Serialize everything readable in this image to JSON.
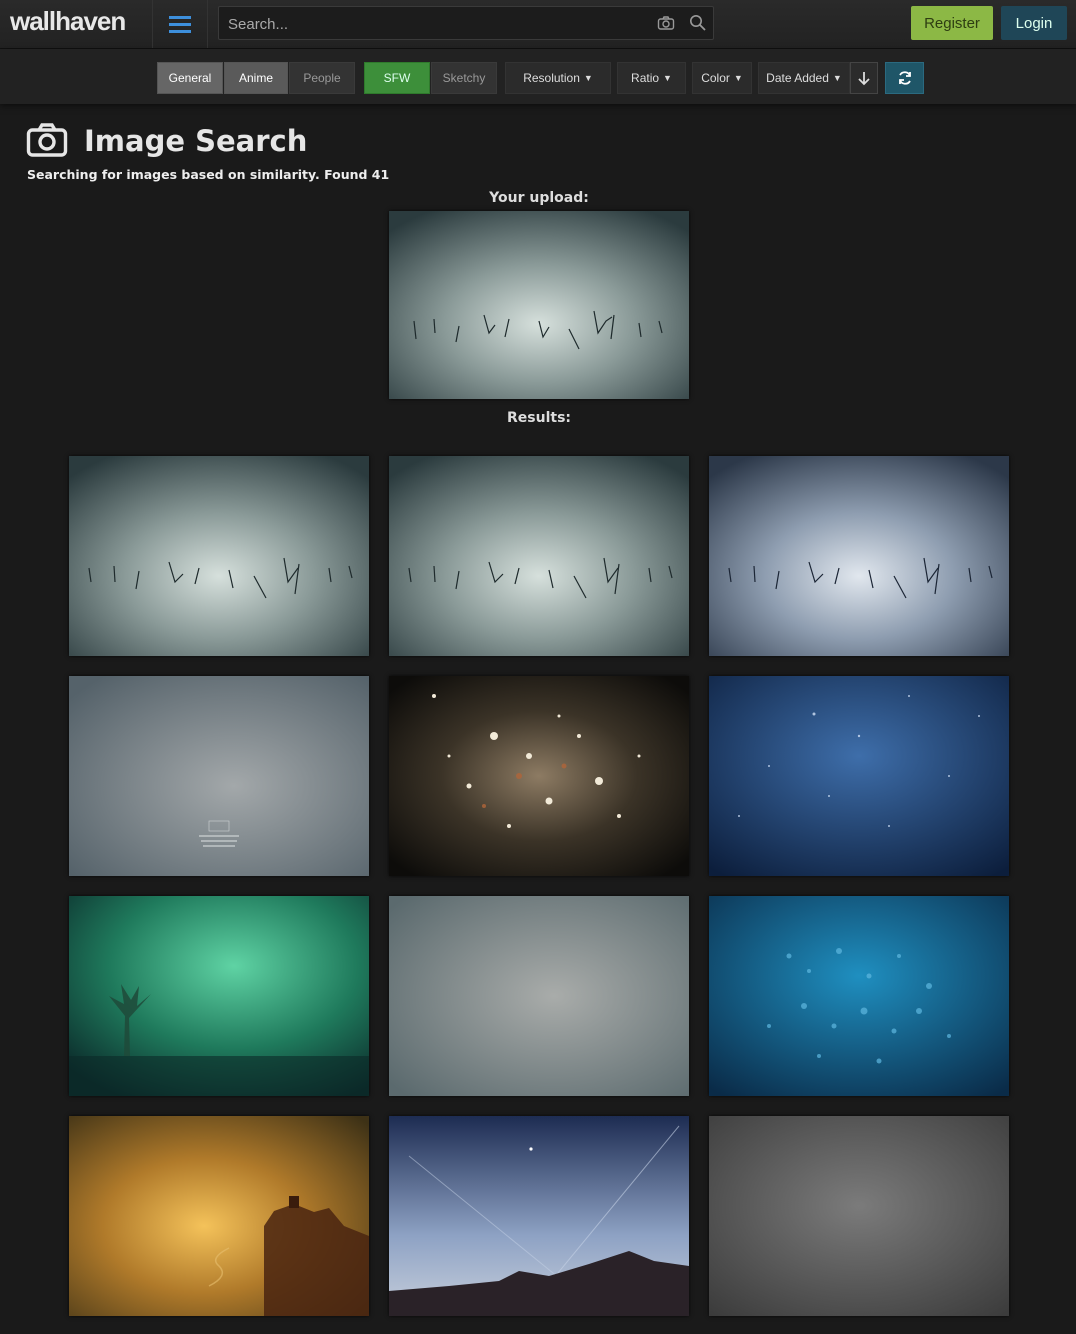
{
  "header": {
    "logo": "wallhaven",
    "search_placeholder": "Search...",
    "register_label": "Register",
    "login_label": "Login"
  },
  "filters": {
    "categories": [
      "General",
      "Anime",
      "People"
    ],
    "purity": [
      "SFW",
      "Sketchy"
    ],
    "dropdowns": [
      "Resolution",
      "Ratio",
      "Color",
      "Date Added"
    ]
  },
  "page": {
    "title": "Image Search",
    "subtitle": "Searching for images based on similarity. Found 41",
    "upload_label": "Your upload:",
    "results_label": "Results:"
  },
  "colors": {
    "register": "#8cb845",
    "login": "#1f4657",
    "sfw": "#3d8f3a",
    "accent_blue": "#3d8fdc"
  },
  "results_count": 12
}
